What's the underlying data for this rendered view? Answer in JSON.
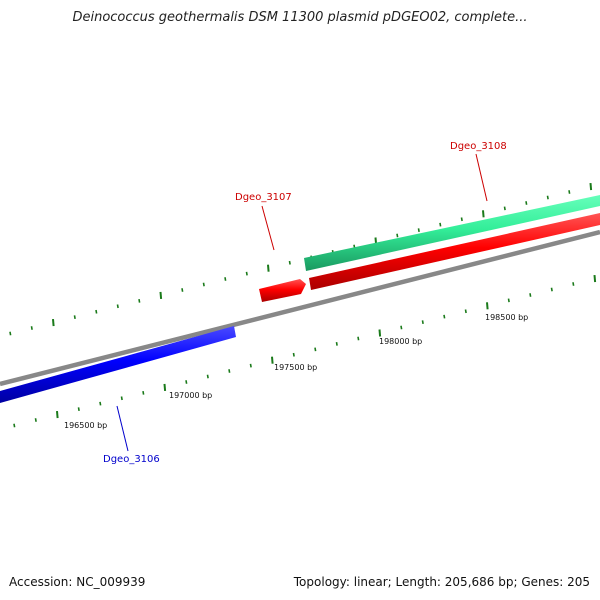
{
  "title": "Deinococcus geothermalis DSM 11300 plasmid pDGEO02, complete...",
  "footer": {
    "accession": "Accession: NC_009939",
    "summary": "Topology: linear; Length: 205,686 bp; Genes: 205"
  },
  "colors": {
    "backbone": "#888888",
    "tick": "#1a7a1a",
    "gene_forward": "#ff0000",
    "gene_reverse": "#0000ff",
    "gene_other": "#33ee99"
  },
  "ruler": {
    "labels": [
      "196500 bp",
      "197000 bp",
      "197500 bp",
      "198000 bp",
      "198500 bp"
    ]
  },
  "genes": [
    {
      "name": "Dgeo_3106",
      "strand": "reverse",
      "color": "#0000ff",
      "label_color": "#0000cc"
    },
    {
      "name": "Dgeo_3107",
      "strand": "forward",
      "color": "#ff0000",
      "label_color": "#cc0000"
    },
    {
      "name": "Dgeo_3108",
      "strand": "forward",
      "color": "#ff0000",
      "label_color": "#cc0000"
    },
    {
      "name": "",
      "strand": "forward",
      "color": "#33ee99",
      "label_color": ""
    }
  ]
}
